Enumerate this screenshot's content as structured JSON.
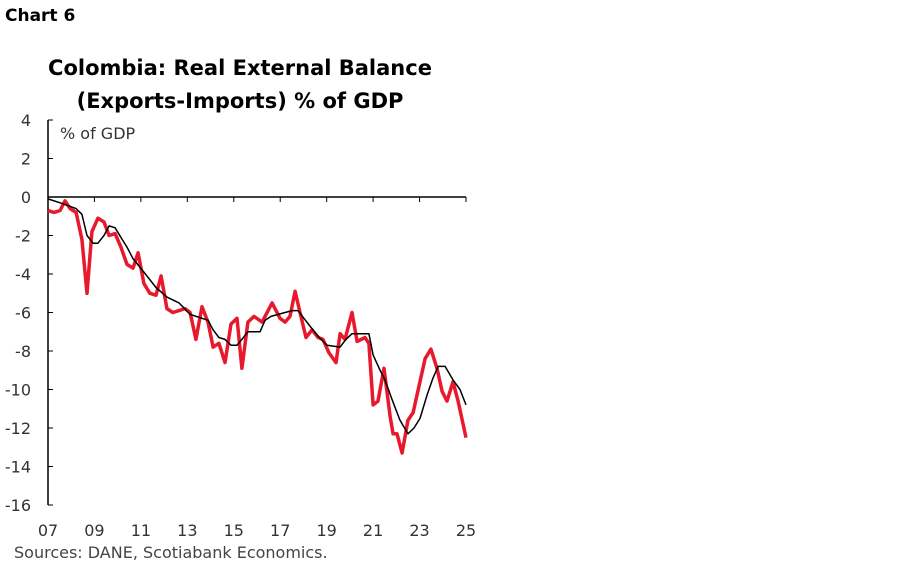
{
  "chart_label": "Chart 6",
  "source": "Sources: DANE, Scotiabank Economics.",
  "chart_data": {
    "type": "line",
    "title": [
      "Colombia: Real External Balance",
      "(Exports-Imports) % of GDP"
    ],
    "ylabel": "% of GDP",
    "xlabel": "",
    "xlim": [
      2007,
      2025
    ],
    "ylim": [
      -16,
      4
    ],
    "yticks": [
      4,
      2,
      0,
      -2,
      -4,
      -6,
      -8,
      -10,
      -12,
      -14,
      -16
    ],
    "xticks": [
      2007,
      2009,
      2011,
      2013,
      2015,
      2017,
      2019,
      2021,
      2023,
      2025
    ],
    "xtick_labels": [
      "07",
      "09",
      "11",
      "13",
      "15",
      "17",
      "19",
      "21",
      "23",
      "25"
    ],
    "grid": false,
    "legend": "none",
    "series": [
      {
        "color": "#e8192c",
        "points": [
          [
            2007.0,
            -0.7
          ],
          [
            2007.26,
            -0.8
          ],
          [
            2007.52,
            -0.7
          ],
          [
            2007.73,
            -0.2
          ],
          [
            2007.95,
            -0.6
          ],
          [
            2008.21,
            -0.8
          ],
          [
            2008.46,
            -2.2
          ],
          [
            2008.68,
            -5.0
          ],
          [
            2008.89,
            -1.8
          ],
          [
            2009.15,
            -1.1
          ],
          [
            2009.41,
            -1.3
          ],
          [
            2009.63,
            -2.0
          ],
          [
            2009.89,
            -1.9
          ],
          [
            2010.14,
            -2.6
          ],
          [
            2010.4,
            -3.5
          ],
          [
            2010.66,
            -3.7
          ],
          [
            2010.88,
            -2.9
          ],
          [
            2011.13,
            -4.5
          ],
          [
            2011.39,
            -5.0
          ],
          [
            2011.65,
            -5.1
          ],
          [
            2011.87,
            -4.1
          ],
          [
            2012.12,
            -5.8
          ],
          [
            2012.38,
            -6.0
          ],
          [
            2012.64,
            -5.9
          ],
          [
            2012.9,
            -5.8
          ],
          [
            2013.12,
            -6.0
          ],
          [
            2013.37,
            -7.4
          ],
          [
            2013.63,
            -5.7
          ],
          [
            2013.89,
            -6.5
          ],
          [
            2014.11,
            -7.8
          ],
          [
            2014.36,
            -7.6
          ],
          [
            2014.62,
            -8.6
          ],
          [
            2014.88,
            -6.6
          ],
          [
            2015.14,
            -6.3
          ],
          [
            2015.35,
            -8.9
          ],
          [
            2015.61,
            -6.5
          ],
          [
            2015.87,
            -6.2
          ],
          [
            2016.22,
            -6.5
          ],
          [
            2016.65,
            -5.5
          ],
          [
            2016.99,
            -6.3
          ],
          [
            2017.21,
            -6.5
          ],
          [
            2017.42,
            -6.2
          ],
          [
            2017.64,
            -4.9
          ],
          [
            2017.85,
            -6.0
          ],
          [
            2018.11,
            -7.3
          ],
          [
            2018.37,
            -6.9
          ],
          [
            2018.63,
            -7.3
          ],
          [
            2018.84,
            -7.4
          ],
          [
            2019.1,
            -8.1
          ],
          [
            2019.4,
            -8.6
          ],
          [
            2019.58,
            -7.1
          ],
          [
            2019.79,
            -7.4
          ],
          [
            2020.09,
            -6.0
          ],
          [
            2020.31,
            -7.5
          ],
          [
            2020.65,
            -7.3
          ],
          [
            2020.82,
            -7.6
          ],
          [
            2021.0,
            -10.8
          ],
          [
            2021.21,
            -10.6
          ],
          [
            2021.47,
            -8.9
          ],
          [
            2021.73,
            -11.4
          ],
          [
            2021.86,
            -12.3
          ],
          [
            2022.03,
            -12.3
          ],
          [
            2022.25,
            -13.3
          ],
          [
            2022.5,
            -11.6
          ],
          [
            2022.72,
            -11.2
          ],
          [
            2023.24,
            -8.4
          ],
          [
            2023.49,
            -7.9
          ],
          [
            2023.75,
            -8.9
          ],
          [
            2023.97,
            -10.1
          ],
          [
            2024.18,
            -10.6
          ],
          [
            2024.44,
            -9.6
          ],
          [
            2024.66,
            -10.6
          ],
          [
            2025.0,
            -12.5
          ]
        ]
      },
      {
        "color": "#000000",
        "points": [
          [
            2007.0,
            -0.1
          ],
          [
            2007.52,
            -0.3
          ],
          [
            2008.21,
            -0.6
          ],
          [
            2008.46,
            -0.9
          ],
          [
            2008.68,
            -2.0
          ],
          [
            2008.94,
            -2.4
          ],
          [
            2009.15,
            -2.4
          ],
          [
            2009.41,
            -2.0
          ],
          [
            2009.63,
            -1.5
          ],
          [
            2009.89,
            -1.6
          ],
          [
            2010.14,
            -2.1
          ],
          [
            2010.4,
            -2.6
          ],
          [
            2010.66,
            -3.2
          ],
          [
            2011.13,
            -3.9
          ],
          [
            2011.65,
            -4.7
          ],
          [
            2012.12,
            -5.2
          ],
          [
            2012.64,
            -5.5
          ],
          [
            2013.12,
            -6.1
          ],
          [
            2013.63,
            -6.3
          ],
          [
            2013.89,
            -6.4
          ],
          [
            2014.11,
            -6.9
          ],
          [
            2014.36,
            -7.3
          ],
          [
            2014.62,
            -7.4
          ],
          [
            2014.88,
            -7.7
          ],
          [
            2015.14,
            -7.7
          ],
          [
            2015.35,
            -7.4
          ],
          [
            2015.61,
            -7.0
          ],
          [
            2016.13,
            -7.0
          ],
          [
            2016.35,
            -6.4
          ],
          [
            2016.6,
            -6.2
          ],
          [
            2017.21,
            -6.0
          ],
          [
            2017.51,
            -5.9
          ],
          [
            2017.77,
            -5.9
          ],
          [
            2018.02,
            -6.3
          ],
          [
            2018.28,
            -6.7
          ],
          [
            2018.54,
            -7.1
          ],
          [
            2018.76,
            -7.4
          ],
          [
            2019.02,
            -7.7
          ],
          [
            2019.58,
            -7.8
          ],
          [
            2019.83,
            -7.4
          ],
          [
            2020.09,
            -7.1
          ],
          [
            2020.82,
            -7.1
          ],
          [
            2021.0,
            -8.2
          ],
          [
            2021.3,
            -9.0
          ],
          [
            2021.51,
            -9.5
          ],
          [
            2021.81,
            -10.5
          ],
          [
            2022.16,
            -11.6
          ],
          [
            2022.5,
            -12.3
          ],
          [
            2022.76,
            -12.0
          ],
          [
            2023.02,
            -11.5
          ],
          [
            2023.32,
            -10.3
          ],
          [
            2023.58,
            -9.4
          ],
          [
            2023.8,
            -8.8
          ],
          [
            2024.1,
            -8.8
          ],
          [
            2024.44,
            -9.5
          ],
          [
            2024.74,
            -10.0
          ],
          [
            2025.0,
            -10.8
          ]
        ]
      }
    ]
  }
}
